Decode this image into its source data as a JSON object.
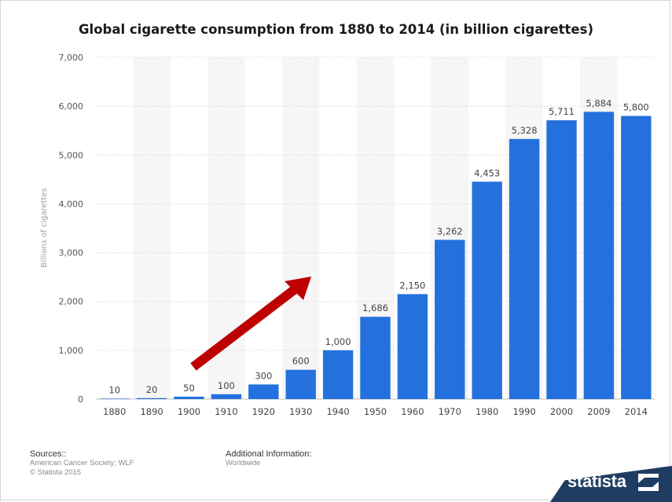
{
  "chart_data": {
    "type": "bar",
    "title": "Global cigarette consumption from 1880 to 2014 (in billion cigarettes)",
    "xlabel": "",
    "ylabel": "Billions of cigarettes",
    "categories": [
      "1880",
      "1890",
      "1900",
      "1910",
      "1920",
      "1930",
      "1940",
      "1950",
      "1960",
      "1970",
      "1980",
      "1990",
      "2000",
      "2009",
      "2014"
    ],
    "values": [
      10,
      20,
      50,
      100,
      300,
      600,
      1000,
      1686,
      2150,
      3262,
      4453,
      5328,
      5711,
      5884,
      5800
    ],
    "value_labels": [
      "10",
      "20",
      "50",
      "100",
      "300",
      "600",
      "1,000",
      "1,686",
      "2,150",
      "3,262",
      "4,453",
      "5,328",
      "5,711",
      "5,884",
      "5,800"
    ],
    "ylim": [
      0,
      7000
    ],
    "yticks": [
      0,
      1000,
      2000,
      3000,
      4000,
      5000,
      6000,
      7000
    ],
    "ytick_labels": [
      "0",
      "1,000",
      "2,000",
      "3,000",
      "4,000",
      "5,000",
      "6,000",
      "7,000"
    ],
    "bar_color": "#2471dd",
    "grid": true,
    "annotation": {
      "type": "arrow",
      "color": "#bd0000",
      "direction": "up-right"
    }
  },
  "footer": {
    "sources_title": "Sources::",
    "sources_lines": [
      "American Cancer Society; WLF",
      "© Statista 2015"
    ],
    "additional_title": "Additional Information:",
    "additional_lines": [
      "Worldwide"
    ],
    "brand": "statista"
  }
}
